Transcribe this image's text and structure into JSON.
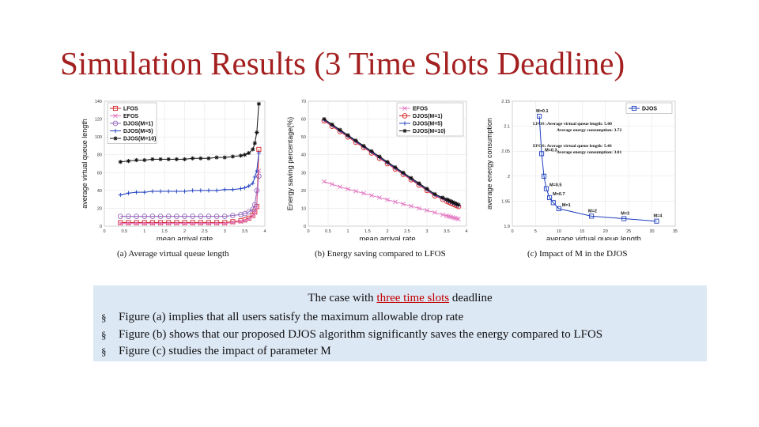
{
  "title": "Simulation Results (3 Time Slots Deadline)",
  "captions": {
    "a": "(a) Average virtual queue length",
    "b": "(b) Energy saving compared to LFOS",
    "c": "(c) Impact of M in the DJOS"
  },
  "textbox": {
    "heading_pre": "The case with ",
    "heading_highlight": "three time slots",
    "heading_post": " deadline",
    "bullets": [
      "Figure (a) implies that all users satisfy the maximum allowable drop rate",
      "Figure (b) shows that our proposed DJOS algorithm significantly saves the energy compared to LFOS",
      "Figure (c) studies the impact of parameter M"
    ],
    "bullet_symbol": "§"
  },
  "chart_data": [
    {
      "type": "line",
      "xlabel": "mean arrival rate",
      "ylabel": "average virtual queue length",
      "xlim": [
        0,
        4
      ],
      "ylim": [
        0,
        140
      ],
      "xticks": [
        "0",
        "0.5",
        "1",
        "1.5",
        "2",
        "2.5",
        "3",
        "3.5",
        "4"
      ],
      "yticks": [
        "0",
        "20",
        "40",
        "60",
        "80",
        "100",
        "120",
        "140"
      ],
      "grid": true,
      "legend": "top-left",
      "x": [
        0.4,
        0.6,
        0.8,
        1.0,
        1.2,
        1.4,
        1.6,
        1.8,
        2.0,
        2.2,
        2.4,
        2.6,
        2.8,
        3.0,
        3.2,
        3.4,
        3.5,
        3.6,
        3.7,
        3.75,
        3.8,
        3.85
      ],
      "series": [
        {
          "name": "LFOS",
          "color": "#d62728",
          "marker": "square",
          "values": [
            4,
            4,
            4,
            4,
            4,
            4,
            4,
            4,
            4,
            4,
            4,
            4,
            4,
            4,
            5,
            6,
            7,
            9,
            12,
            16,
            22,
            86
          ]
        },
        {
          "name": "EFOS",
          "color": "#e377c2",
          "marker": "x",
          "values": [
            3,
            3,
            3,
            3,
            3,
            3,
            3,
            3,
            3,
            3,
            3,
            3,
            3,
            3,
            4,
            5,
            6,
            8,
            11,
            15,
            21,
            62
          ]
        },
        {
          "name": "DJOS(M=1)",
          "color": "#9467bd",
          "marker": "circle",
          "values": [
            11,
            11,
            11,
            11,
            11,
            11,
            11,
            11,
            11,
            11,
            11,
            11,
            11,
            11,
            12,
            13,
            14,
            16,
            19,
            24,
            40,
            56
          ]
        },
        {
          "name": "DJOS(M=5)",
          "color": "#1f3fbf",
          "marker": "plus",
          "values": [
            35,
            37,
            38,
            38,
            39,
            39,
            39,
            39,
            39,
            40,
            40,
            40,
            40,
            41,
            41,
            42,
            43,
            45,
            48,
            55,
            62,
            82
          ]
        },
        {
          "name": "DJOS(M=10)",
          "color": "#111111",
          "marker": "star",
          "values": [
            72,
            73,
            74,
            74,
            75,
            75,
            75,
            75,
            75,
            76,
            76,
            76,
            77,
            77,
            78,
            79,
            80,
            82,
            86,
            93,
            105,
            137
          ]
        }
      ]
    },
    {
      "type": "line",
      "xlabel": "mean arrival rate",
      "ylabel": "Energy saving percentage(%)",
      "xlim": [
        0,
        4
      ],
      "ylim": [
        0,
        70
      ],
      "xticks": [
        "0",
        "0.5",
        "1",
        "1.5",
        "2",
        "2.5",
        "3",
        "3.5",
        "4"
      ],
      "yticks": [
        "0",
        "10",
        "20",
        "30",
        "40",
        "50",
        "60",
        "70"
      ],
      "grid": true,
      "legend": "top-right",
      "x": [
        0.4,
        0.6,
        0.8,
        1.0,
        1.2,
        1.4,
        1.6,
        1.8,
        2.0,
        2.2,
        2.4,
        2.6,
        2.8,
        3.0,
        3.2,
        3.4,
        3.5,
        3.55,
        3.6,
        3.65,
        3.7,
        3.75,
        3.8
      ],
      "series": [
        {
          "name": "EFOS",
          "color": "#e377c2",
          "marker": "x",
          "values": [
            25,
            23.5,
            22,
            20.8,
            19.6,
            18.4,
            17.2,
            16,
            14.8,
            13.6,
            12.4,
            11.2,
            10,
            8.8,
            7.6,
            6.4,
            5.8,
            5.5,
            5.2,
            4.9,
            4.6,
            4.3,
            4
          ]
        },
        {
          "name": "DJOS(M=1)",
          "color": "#d62728",
          "marker": "circle",
          "values": [
            59,
            56,
            53,
            50,
            47,
            44,
            41,
            38,
            35,
            32,
            29,
            26,
            23,
            20,
            17,
            15,
            14,
            13.5,
            13,
            12.5,
            12,
            11.5,
            11
          ]
        },
        {
          "name": "DJOS(M=5)",
          "color": "#1f3fbf",
          "marker": "plus",
          "values": [
            59.5,
            56.5,
            53.5,
            50.5,
            47.5,
            44.5,
            41.5,
            38.5,
            35.5,
            32.5,
            29.5,
            26.5,
            23.5,
            20.5,
            17.5,
            15.5,
            14.5,
            14,
            13.5,
            13,
            12.5,
            12,
            11.5
          ]
        },
        {
          "name": "DJOS(M=10)",
          "color": "#111111",
          "marker": "star",
          "values": [
            60,
            57,
            54,
            51,
            48,
            45,
            42,
            39,
            36,
            33,
            30,
            27,
            24,
            21,
            18,
            16,
            15,
            14.5,
            14,
            13.5,
            13,
            12.5,
            12
          ]
        }
      ]
    },
    {
      "type": "line",
      "xlabel": "average virtual queue length",
      "ylabel": "average energy consumption",
      "xlim": [
        0,
        35
      ],
      "ylim": [
        1.9,
        2.15
      ],
      "xticks": [
        "0",
        "5",
        "10",
        "15",
        "20",
        "25",
        "30",
        "35"
      ],
      "yticks": [
        "1.9",
        "1.95",
        "2",
        "2.05",
        "2.1",
        "2.15"
      ],
      "grid": true,
      "legend": "top-right",
      "series": [
        {
          "name": "DJOS",
          "color": "#1f3fbf",
          "marker": "square",
          "x": [
            5.8,
            6.3,
            6.8,
            7.3,
            8.0,
            8.8,
            10.0,
            17.0,
            24.0,
            31.0
          ],
          "values": [
            2.12,
            2.045,
            2.0,
            1.975,
            1.957,
            1.947,
            1.935,
            1.92,
            1.915,
            1.91
          ]
        }
      ],
      "point_labels": [
        {
          "text": "M=0.1",
          "x": 5.8,
          "y": 2.12
        },
        {
          "text": "M=0.3",
          "x": 6.3,
          "y": 2.045
        },
        {
          "text": "M=0.5",
          "x": 7.3,
          "y": 1.975
        },
        {
          "text": "M=0.7",
          "x": 8.0,
          "y": 1.957
        },
        {
          "text": "M=1",
          "x": 10.0,
          "y": 1.935
        },
        {
          "text": "M=2",
          "x": 17.0,
          "y": 1.92
        },
        {
          "text": "M=3",
          "x": 24.0,
          "y": 1.915
        },
        {
          "text": "M=4",
          "x": 31.0,
          "y": 1.91
        }
      ],
      "annotations": [
        "LFOS :Average virtual queue length: 5.00",
        "Average energy consumption: 3.72",
        "EFOS: Average virtual queue length: 5.46",
        "Average energy consumption: 3.01"
      ]
    }
  ]
}
